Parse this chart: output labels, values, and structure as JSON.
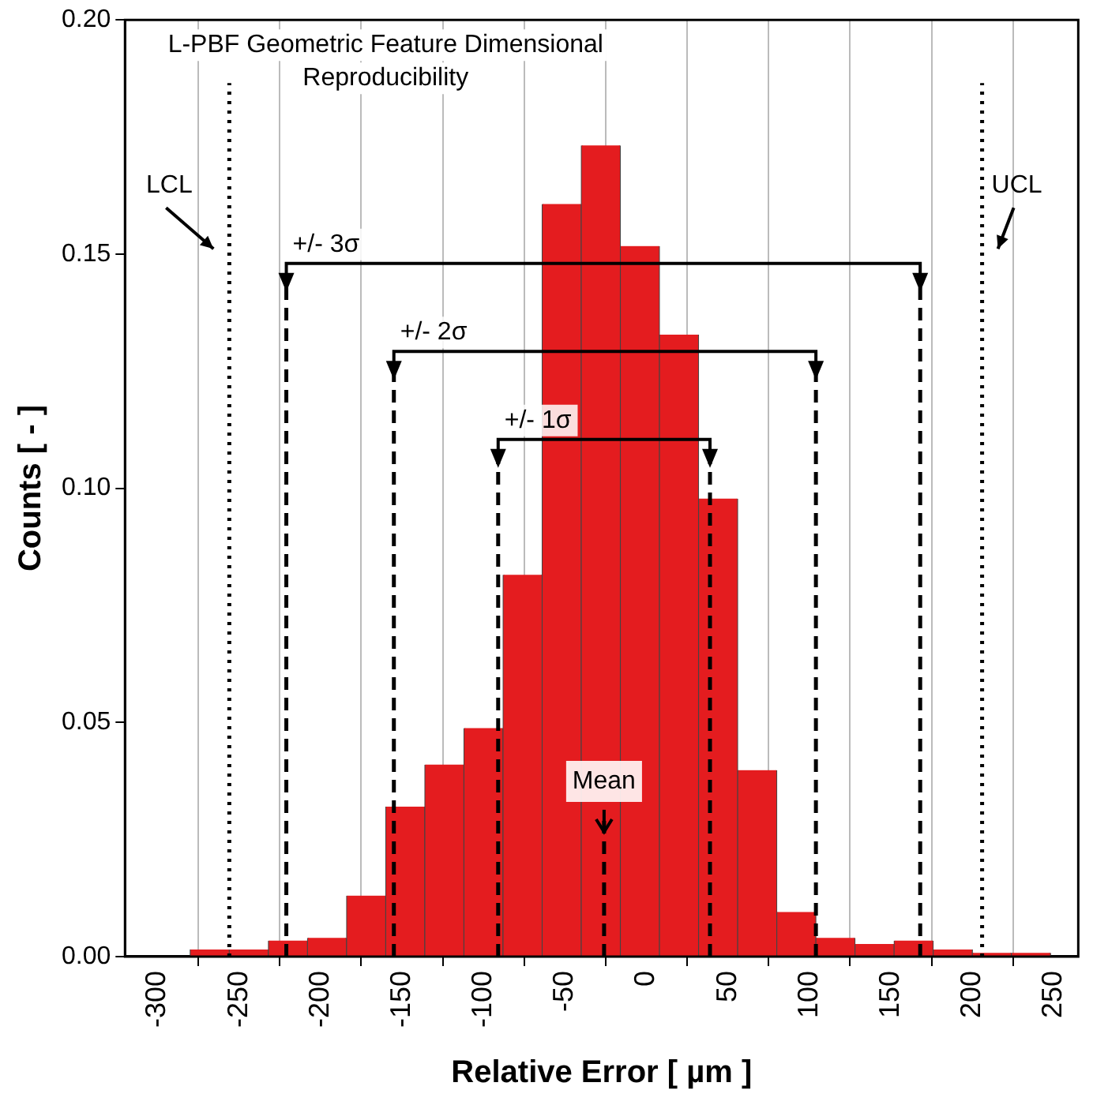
{
  "chart_data": {
    "type": "histogram",
    "title": "L-PBF Geometric Feature Dimensional Reproducibility",
    "xlabel": "Relative Error [ µm ]",
    "ylabel": "Counts [ - ]",
    "bins": [
      -280,
      -256,
      -232,
      -208,
      -184,
      -160,
      -136,
      -112,
      -88,
      -64,
      -40,
      -16,
      8,
      32,
      56,
      80,
      104,
      128,
      152,
      176,
      200,
      224,
      248
    ],
    "values": [
      0.0015,
      0.0015,
      0.0034,
      0.004,
      0.013,
      0.032,
      0.041,
      0.0488,
      0.0815,
      0.1607,
      0.1732,
      0.1517,
      0.1328,
      0.0978,
      0.0398,
      0.0095,
      0.004,
      0.0027,
      0.0034,
      0.0015,
      0.0008,
      0.0008
    ],
    "color": "#e41c1f",
    "xlim": [
      -320,
      265
    ],
    "xticks": [
      -300,
      -250,
      -200,
      -150,
      -100,
      -50,
      0,
      50,
      100,
      150,
      200,
      250
    ],
    "ylim": [
      0,
      0.2
    ],
    "yticks": [
      {
        "value": 0,
        "label": "0.00"
      },
      {
        "value": 0.05,
        "label": "0.05"
      },
      {
        "value": 0.1,
        "label": "0.10"
      },
      {
        "value": 0.15,
        "label": "0.15"
      },
      {
        "value": 0.2,
        "label": "0.20"
      }
    ],
    "grid": "x",
    "ref_lines": [
      {
        "axis": "x",
        "value": -256,
        "label": "LCL",
        "line_style": "dotted",
        "color": "#000000"
      },
      {
        "axis": "x",
        "value": 206,
        "label": "UCL",
        "line_style": "dotted",
        "color": "#000000"
      },
      {
        "axis": "x",
        "value": -26,
        "label": "Mean",
        "line_style": "dashed",
        "color": "#000000"
      },
      {
        "axis": "x",
        "value": -91,
        "label": null,
        "line_style": "dashed",
        "color": "#000000"
      },
      {
        "axis": "x",
        "value": 39,
        "label": null,
        "line_style": "dashed",
        "color": "#000000"
      },
      {
        "axis": "x",
        "value": -155,
        "label": null,
        "line_style": "dashed",
        "color": "#000000"
      },
      {
        "axis": "x",
        "value": 104,
        "label": null,
        "line_style": "dashed",
        "color": "#000000"
      },
      {
        "axis": "x",
        "value": -221,
        "label": null,
        "line_style": "dashed",
        "color": "#000000"
      },
      {
        "axis": "x",
        "value": 168,
        "label": null,
        "line_style": "dashed",
        "color": "#000000"
      }
    ],
    "annotations": [
      "+/- 1σ",
      "+/- 2σ",
      "+/- 3σ"
    ]
  }
}
